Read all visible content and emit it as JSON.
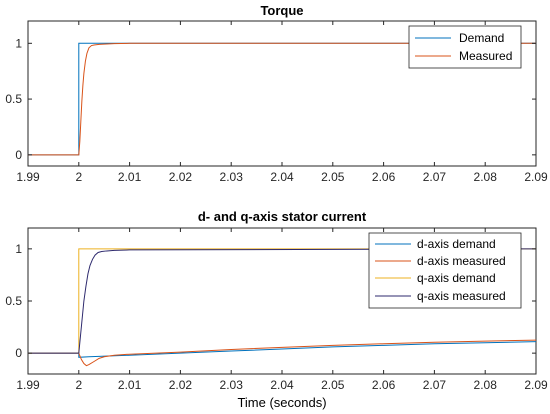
{
  "chart_data": [
    {
      "type": "line",
      "title": "Torque",
      "xlabel": "",
      "ylabel": "",
      "xlim": [
        1.99,
        2.09
      ],
      "ylim": [
        -0.1,
        1.2
      ],
      "x_ticks": [
        "1.99",
        "2",
        "2.01",
        "2.02",
        "2.03",
        "2.04",
        "2.05",
        "2.06",
        "2.07",
        "2.08",
        "2.09"
      ],
      "x_tick_values": [
        1.99,
        2.0,
        2.01,
        2.02,
        2.03,
        2.04,
        2.05,
        2.06,
        2.07,
        2.08,
        2.09
      ],
      "y_ticks": [
        "0",
        "0.5",
        "1"
      ],
      "y_tick_values": [
        0,
        0.5,
        1
      ],
      "grid": false,
      "legend_position": "top-right",
      "series": [
        {
          "name": "Demand",
          "color": "#0072BD",
          "x": [
            1.99,
            2.0,
            2.0,
            2.09
          ],
          "y": [
            0,
            0,
            1,
            1
          ]
        },
        {
          "name": "Measured",
          "color": "#D95319",
          "x": [
            1.99,
            2.0,
            2.0002,
            2.0004,
            2.0006,
            2.0008,
            2.001,
            2.0013,
            2.0016,
            2.002,
            2.0025,
            2.003,
            2.004,
            2.005,
            2.007,
            2.01,
            2.09
          ],
          "y": [
            0,
            0,
            0.12,
            0.3,
            0.48,
            0.62,
            0.73,
            0.84,
            0.91,
            0.96,
            0.98,
            0.985,
            0.99,
            0.993,
            0.997,
            1.0,
            1.0
          ]
        }
      ]
    },
    {
      "type": "line",
      "title": "d- and q-axis stator current",
      "xlabel": "Time (seconds)",
      "ylabel": "",
      "xlim": [
        1.99,
        2.09
      ],
      "ylim": [
        -0.2,
        1.2
      ],
      "x_ticks": [
        "1.99",
        "2",
        "2.01",
        "2.02",
        "2.03",
        "2.04",
        "2.05",
        "2.06",
        "2.07",
        "2.08",
        "2.09"
      ],
      "x_tick_values": [
        1.99,
        2.0,
        2.01,
        2.02,
        2.03,
        2.04,
        2.05,
        2.06,
        2.07,
        2.08,
        2.09
      ],
      "y_ticks": [
        "0",
        "0.5",
        "1"
      ],
      "y_tick_values": [
        0,
        0.5,
        1
      ],
      "grid": false,
      "legend_position": "top-right",
      "series": [
        {
          "name": "d-axis demand",
          "color": "#0072BD",
          "x": [
            1.99,
            2.0,
            2.0,
            2.002,
            2.01,
            2.02,
            2.03,
            2.04,
            2.05,
            2.06,
            2.07,
            2.08,
            2.09
          ],
          "y": [
            0,
            0,
            -0.04,
            -0.035,
            -0.02,
            0.0,
            0.02,
            0.04,
            0.06,
            0.075,
            0.09,
            0.1,
            0.11
          ]
        },
        {
          "name": "d-axis measured",
          "color": "#D95319",
          "x": [
            1.99,
            2.0,
            2.0005,
            2.001,
            2.0015,
            2.002,
            2.003,
            2.004,
            2.005,
            2.007,
            2.01,
            2.02,
            2.03,
            2.04,
            2.05,
            2.06,
            2.07,
            2.08,
            2.09
          ],
          "y": [
            0,
            0,
            -0.06,
            -0.1,
            -0.12,
            -0.11,
            -0.08,
            -0.05,
            -0.035,
            -0.02,
            -0.01,
            0.01,
            0.035,
            0.055,
            0.075,
            0.09,
            0.105,
            0.115,
            0.125
          ]
        },
        {
          "name": "q-axis demand",
          "color": "#EDB120",
          "x": [
            1.99,
            2.0,
            2.0,
            2.09
          ],
          "y": [
            0,
            0,
            1.0,
            1.0
          ]
        },
        {
          "name": "q-axis measured",
          "color": "#2E2A6E",
          "x": [
            1.99,
            2.0,
            2.0003,
            2.0006,
            2.001,
            2.0014,
            2.0018,
            2.0022,
            2.0027,
            2.0032,
            2.0038,
            2.0045,
            2.0055,
            2.007,
            2.01,
            2.09
          ],
          "y": [
            0,
            0,
            0.15,
            0.3,
            0.5,
            0.64,
            0.76,
            0.84,
            0.9,
            0.94,
            0.965,
            0.975,
            0.98,
            0.985,
            0.99,
            1.0
          ]
        }
      ]
    }
  ]
}
